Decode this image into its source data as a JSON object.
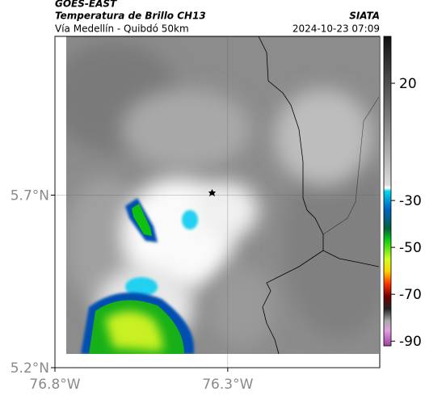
{
  "header": {
    "source": "GOES-EAST",
    "title": "Temperatura de Brillo CH13",
    "org": "SIATA",
    "route": "Vía Medellín - Quibdó 50km",
    "time": "2024-10-23 07:09"
  },
  "map": {
    "lonlim": [
      -76.8,
      -75.86
    ],
    "latlim": [
      5.2,
      6.16
    ],
    "lonticks": [
      {
        "value": -76.8,
        "label": "76.8°W"
      },
      {
        "value": -76.3,
        "label": "76.3°W"
      }
    ],
    "latticks": [
      {
        "value": 5.2,
        "label": "5.2°N"
      },
      {
        "value": 5.7,
        "label": "5.7°N"
      }
    ]
  },
  "colorbar": {
    "lim": [
      40,
      -92
    ],
    "ticks": [
      20,
      -30,
      -50,
      -70,
      -90
    ]
  }
}
